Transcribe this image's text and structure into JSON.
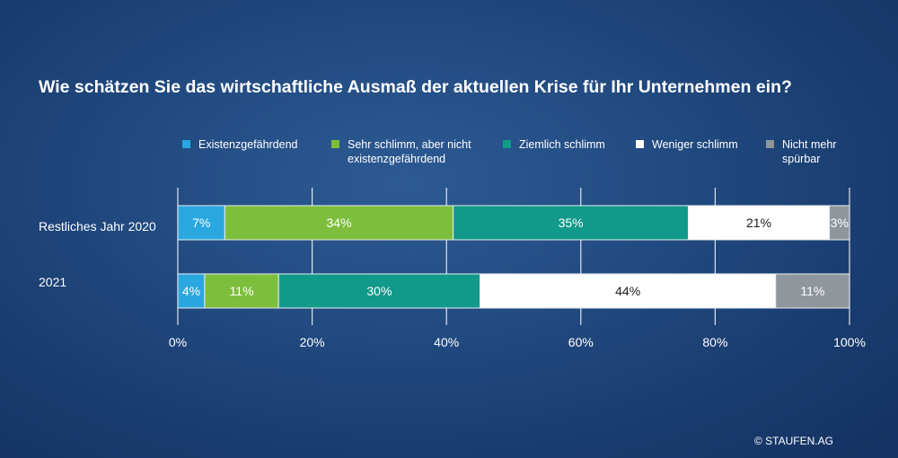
{
  "title": "Wie schätzen Sie das wirtschaftliche Ausmaß der aktuellen Krise für Ihr Unternehmen ein?",
  "copyright": "© STAUFEN.AG",
  "colors": {
    "existenz": "#2aa7df",
    "sehr": "#7dbf3d",
    "ziemlich": "#11998a",
    "weniger": "#ffffff",
    "nicht": "#8f969c",
    "grid": "#ffffff",
    "bar_border": "#e9eef3"
  },
  "legend": [
    {
      "label": "Existenzgefährdend",
      "color_key": "existenz"
    },
    {
      "label": "Sehr schlimm, aber nicht\nexistenzgefährdend",
      "color_key": "sehr"
    },
    {
      "label": "Ziemlich schlimm",
      "color_key": "ziemlich"
    },
    {
      "label": "Weniger schlimm",
      "color_key": "weniger"
    },
    {
      "label": "Nicht mehr\nspürbar",
      "color_key": "nicht"
    }
  ],
  "chart_data": {
    "type": "bar",
    "orientation": "horizontal",
    "stacked": true,
    "title": "Wie schätzen Sie das wirtschaftliche Ausmaß der aktuellen Krise für Ihr Unternehmen ein?",
    "categories": [
      "Restliches Jahr 2020",
      "2021"
    ],
    "xlim": [
      0,
      100
    ],
    "x_ticks": [
      "0%",
      "20%",
      "40%",
      "60%",
      "80%",
      "100%"
    ],
    "grid": true,
    "legend_position": "top",
    "series": [
      {
        "name": "Existenzgefährdend",
        "color_key": "existenz",
        "values": [
          7,
          4
        ],
        "labels": [
          "7%",
          "4%"
        ]
      },
      {
        "name": "Sehr schlimm, aber nicht existenzgefährdend",
        "color_key": "sehr",
        "values": [
          34,
          11
        ],
        "labels": [
          "34%",
          "11%"
        ]
      },
      {
        "name": "Ziemlich schlimm",
        "color_key": "ziemlich",
        "values": [
          35,
          30
        ],
        "labels": [
          "35%",
          "30%"
        ]
      },
      {
        "name": "Weniger schlimm",
        "color_key": "weniger",
        "values": [
          21,
          44
        ],
        "labels": [
          "21%",
          "44%"
        ]
      },
      {
        "name": "Nicht mehr spürbar",
        "color_key": "nicht",
        "values": [
          3,
          11
        ],
        "labels": [
          "3%",
          "11%"
        ]
      }
    ]
  }
}
